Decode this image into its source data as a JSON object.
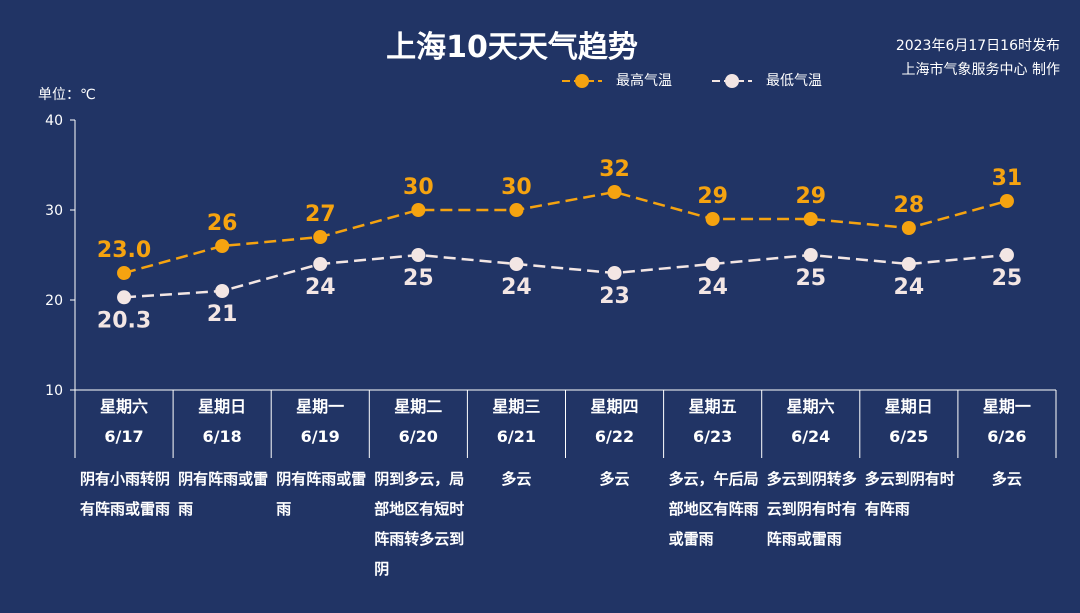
{
  "title": "上海10天天气趋势",
  "publish_line1": "2023年6月17日16时发布",
  "publish_line2": "上海市气象服务中心 制作",
  "unit_label": "单位：℃",
  "colors": {
    "background": "#213465",
    "high": "#F5A310",
    "low": "#F3E6E4",
    "axis": "#FFFFFF"
  },
  "chart_data": {
    "type": "line",
    "ylim": [
      10,
      40
    ],
    "yticks": [
      "40",
      "30",
      "20",
      "10"
    ],
    "categories": [
      "6/17",
      "6/18",
      "6/19",
      "6/20",
      "6/21",
      "6/22",
      "6/23",
      "6/24",
      "6/25",
      "6/26"
    ],
    "weekdays": [
      "星期六",
      "星期日",
      "星期一",
      "星期二",
      "星期三",
      "星期四",
      "星期五",
      "星期六",
      "星期日",
      "星期一"
    ],
    "series": [
      {
        "name": "最高气温",
        "values": [
          23.0,
          26,
          27,
          30,
          30,
          32,
          29,
          29,
          28,
          31
        ],
        "labels": [
          "23.0",
          "26",
          "27",
          "30",
          "30",
          "32",
          "29",
          "29",
          "28",
          "31"
        ]
      },
      {
        "name": "最低气温",
        "values": [
          20.3,
          21,
          24,
          25,
          24,
          23,
          24,
          25,
          24,
          25
        ],
        "labels": [
          "20.3",
          "21",
          "24",
          "25",
          "24",
          "23",
          "24",
          "25",
          "24",
          "25"
        ]
      }
    ],
    "weather": [
      "阴有小雨转阴有阵雨或雷雨",
      "阴有阵雨或雷雨",
      "阴有阵雨或雷雨",
      "阴到多云，局部地区有短时阵雨转多云到阴",
      "多云",
      "多云",
      "多云，午后局部地区有阵雨或雷雨",
      "多云到阴转多云到阴有时有阵雨或雷雨",
      "多云到阴有时有阵雨",
      "多云"
    ]
  }
}
